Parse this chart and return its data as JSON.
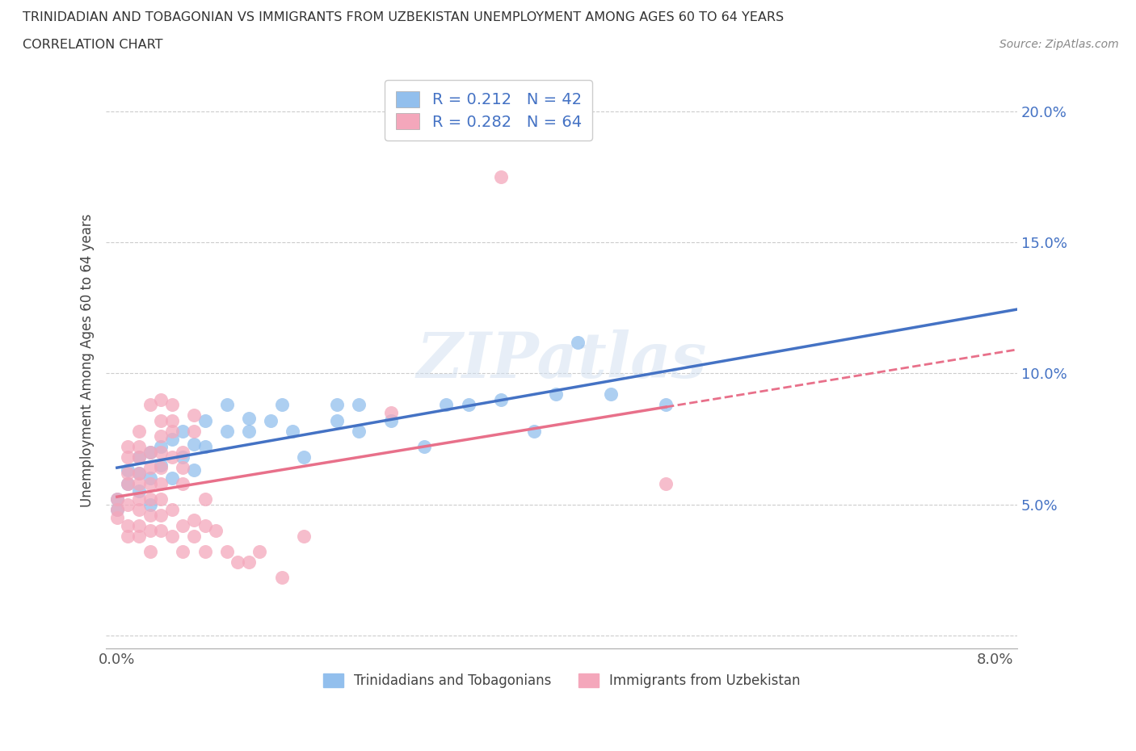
{
  "title_line1": "TRINIDADIAN AND TOBAGONIAN VS IMMIGRANTS FROM UZBEKISTAN UNEMPLOYMENT AMONG AGES 60 TO 64 YEARS",
  "title_line2": "CORRELATION CHART",
  "source_text": "Source: ZipAtlas.com",
  "ylabel": "Unemployment Among Ages 60 to 64 years",
  "xlim": [
    -0.001,
    0.082
  ],
  "ylim": [
    -0.005,
    0.215
  ],
  "x_ticks": [
    0.0,
    0.02,
    0.04,
    0.06,
    0.08
  ],
  "x_tick_labels": [
    "0.0%",
    "",
    "",
    "",
    "8.0%"
  ],
  "y_ticks": [
    0.0,
    0.05,
    0.1,
    0.15,
    0.2
  ],
  "y_tick_labels_right": [
    "",
    "5.0%",
    "10.0%",
    "15.0%",
    "20.0%"
  ],
  "blue_R": 0.212,
  "blue_N": 42,
  "pink_R": 0.282,
  "pink_N": 64,
  "blue_color": "#92BFED",
  "pink_color": "#F4A7BB",
  "trend_blue": "#4472C4",
  "trend_pink": "#E8708A",
  "watermark": "ZIPatlas",
  "legend_label_blue": "Trinidadians and Tobagonians",
  "legend_label_pink": "Immigrants from Uzbekistan",
  "blue_points": [
    [
      0.0,
      0.048
    ],
    [
      0.0,
      0.052
    ],
    [
      0.001,
      0.058
    ],
    [
      0.001,
      0.063
    ],
    [
      0.002,
      0.055
    ],
    [
      0.002,
      0.062
    ],
    [
      0.002,
      0.068
    ],
    [
      0.003,
      0.05
    ],
    [
      0.003,
      0.06
    ],
    [
      0.003,
      0.07
    ],
    [
      0.004,
      0.065
    ],
    [
      0.004,
      0.072
    ],
    [
      0.005,
      0.06
    ],
    [
      0.005,
      0.075
    ],
    [
      0.006,
      0.068
    ],
    [
      0.006,
      0.078
    ],
    [
      0.007,
      0.063
    ],
    [
      0.007,
      0.073
    ],
    [
      0.008,
      0.082
    ],
    [
      0.008,
      0.072
    ],
    [
      0.01,
      0.088
    ],
    [
      0.01,
      0.078
    ],
    [
      0.012,
      0.078
    ],
    [
      0.012,
      0.083
    ],
    [
      0.014,
      0.082
    ],
    [
      0.015,
      0.088
    ],
    [
      0.016,
      0.078
    ],
    [
      0.017,
      0.068
    ],
    [
      0.02,
      0.082
    ],
    [
      0.02,
      0.088
    ],
    [
      0.022,
      0.078
    ],
    [
      0.022,
      0.088
    ],
    [
      0.025,
      0.082
    ],
    [
      0.028,
      0.072
    ],
    [
      0.03,
      0.088
    ],
    [
      0.032,
      0.088
    ],
    [
      0.035,
      0.09
    ],
    [
      0.038,
      0.078
    ],
    [
      0.04,
      0.092
    ],
    [
      0.042,
      0.112
    ],
    [
      0.045,
      0.092
    ],
    [
      0.05,
      0.088
    ]
  ],
  "pink_points": [
    [
      0.0,
      0.048
    ],
    [
      0.0,
      0.052
    ],
    [
      0.0,
      0.045
    ],
    [
      0.001,
      0.038
    ],
    [
      0.001,
      0.042
    ],
    [
      0.001,
      0.05
    ],
    [
      0.001,
      0.058
    ],
    [
      0.001,
      0.062
    ],
    [
      0.001,
      0.068
    ],
    [
      0.001,
      0.072
    ],
    [
      0.002,
      0.038
    ],
    [
      0.002,
      0.042
    ],
    [
      0.002,
      0.048
    ],
    [
      0.002,
      0.052
    ],
    [
      0.002,
      0.058
    ],
    [
      0.002,
      0.062
    ],
    [
      0.002,
      0.068
    ],
    [
      0.002,
      0.072
    ],
    [
      0.002,
      0.078
    ],
    [
      0.003,
      0.032
    ],
    [
      0.003,
      0.04
    ],
    [
      0.003,
      0.046
    ],
    [
      0.003,
      0.052
    ],
    [
      0.003,
      0.058
    ],
    [
      0.003,
      0.064
    ],
    [
      0.003,
      0.07
    ],
    [
      0.003,
      0.088
    ],
    [
      0.004,
      0.04
    ],
    [
      0.004,
      0.046
    ],
    [
      0.004,
      0.052
    ],
    [
      0.004,
      0.058
    ],
    [
      0.004,
      0.064
    ],
    [
      0.004,
      0.07
    ],
    [
      0.004,
      0.076
    ],
    [
      0.004,
      0.082
    ],
    [
      0.004,
      0.09
    ],
    [
      0.005,
      0.038
    ],
    [
      0.005,
      0.048
    ],
    [
      0.005,
      0.068
    ],
    [
      0.005,
      0.078
    ],
    [
      0.005,
      0.082
    ],
    [
      0.005,
      0.088
    ],
    [
      0.006,
      0.032
    ],
    [
      0.006,
      0.042
    ],
    [
      0.006,
      0.058
    ],
    [
      0.006,
      0.064
    ],
    [
      0.006,
      0.07
    ],
    [
      0.007,
      0.038
    ],
    [
      0.007,
      0.044
    ],
    [
      0.007,
      0.078
    ],
    [
      0.007,
      0.084
    ],
    [
      0.008,
      0.032
    ],
    [
      0.008,
      0.042
    ],
    [
      0.008,
      0.052
    ],
    [
      0.009,
      0.04
    ],
    [
      0.01,
      0.032
    ],
    [
      0.011,
      0.028
    ],
    [
      0.012,
      0.028
    ],
    [
      0.013,
      0.032
    ],
    [
      0.015,
      0.022
    ],
    [
      0.017,
      0.038
    ],
    [
      0.025,
      0.085
    ],
    [
      0.035,
      0.175
    ],
    [
      0.05,
      0.058
    ]
  ]
}
